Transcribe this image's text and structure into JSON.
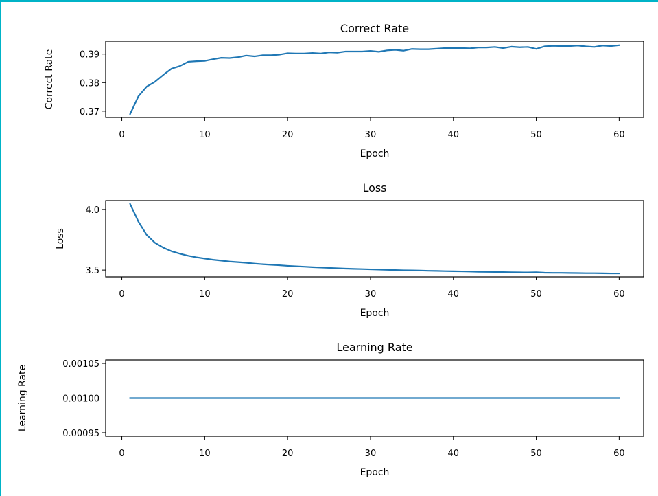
{
  "chart_data": [
    {
      "type": "line",
      "title": "Correct Rate",
      "xlabel": "Epoch",
      "ylabel": "Correct Rate",
      "xlim": [
        -1.95,
        62.95
      ],
      "ylim": [
        0.3678,
        0.3945
      ],
      "xticks": [
        0,
        10,
        20,
        30,
        40,
        50,
        60
      ],
      "yticks": [
        0.37,
        0.38,
        0.39
      ],
      "ytick_labels": [
        "0.37",
        "0.38",
        "0.39"
      ],
      "series": [
        {
          "name": "Correct Rate",
          "color": "#1f77b4",
          "x": [
            1,
            2,
            3,
            4,
            5,
            6,
            7,
            8,
            9,
            10,
            11,
            12,
            13,
            14,
            15,
            16,
            17,
            18,
            19,
            20,
            21,
            22,
            23,
            24,
            25,
            26,
            27,
            28,
            29,
            30,
            31,
            32,
            33,
            34,
            35,
            36,
            37,
            38,
            39,
            40,
            41,
            42,
            43,
            44,
            45,
            46,
            47,
            48,
            49,
            50,
            51,
            52,
            53,
            54,
            55,
            56,
            57,
            58,
            59,
            60
          ],
          "values": [
            0.369,
            0.3752,
            0.3786,
            0.3803,
            0.3827,
            0.3849,
            0.3858,
            0.3873,
            0.3875,
            0.3876,
            0.3882,
            0.3887,
            0.3886,
            0.3889,
            0.3895,
            0.3892,
            0.3896,
            0.3896,
            0.3898,
            0.3903,
            0.3902,
            0.3902,
            0.3904,
            0.3902,
            0.3906,
            0.3905,
            0.3909,
            0.3909,
            0.3909,
            0.3911,
            0.3908,
            0.3913,
            0.3915,
            0.3912,
            0.3918,
            0.3917,
            0.3917,
            0.3919,
            0.3921,
            0.3921,
            0.3921,
            0.392,
            0.3923,
            0.3923,
            0.3925,
            0.3921,
            0.3926,
            0.3924,
            0.3925,
            0.3918,
            0.3927,
            0.3929,
            0.3928,
            0.3928,
            0.393,
            0.3927,
            0.3925,
            0.393,
            0.3928,
            0.3931
          ]
        }
      ]
    },
    {
      "type": "line",
      "title": "Loss",
      "xlabel": "Epoch",
      "ylabel": "Loss",
      "xlim": [
        -1.95,
        62.95
      ],
      "ylim": [
        3.444,
        4.073
      ],
      "xticks": [
        0,
        10,
        20,
        30,
        40,
        50,
        60
      ],
      "yticks": [
        3.5,
        4.0
      ],
      "ytick_labels": [
        "3.5",
        "4.0"
      ],
      "series": [
        {
          "name": "Loss",
          "color": "#1f77b4",
          "x": [
            1,
            2,
            3,
            4,
            5,
            6,
            7,
            8,
            9,
            10,
            11,
            12,
            13,
            14,
            15,
            16,
            17,
            18,
            19,
            20,
            21,
            22,
            23,
            24,
            25,
            26,
            27,
            28,
            29,
            30,
            31,
            32,
            33,
            34,
            35,
            36,
            37,
            38,
            39,
            40,
            41,
            42,
            43,
            44,
            45,
            46,
            47,
            48,
            49,
            50,
            51,
            52,
            53,
            54,
            55,
            56,
            57,
            58,
            59,
            60
          ],
          "values": [
            4.045,
            3.9,
            3.79,
            3.725,
            3.685,
            3.655,
            3.635,
            3.618,
            3.605,
            3.595,
            3.585,
            3.578,
            3.57,
            3.565,
            3.56,
            3.553,
            3.548,
            3.544,
            3.54,
            3.535,
            3.531,
            3.528,
            3.524,
            3.521,
            3.518,
            3.515,
            3.512,
            3.51,
            3.508,
            3.506,
            3.504,
            3.502,
            3.5,
            3.498,
            3.497,
            3.496,
            3.494,
            3.493,
            3.491,
            3.49,
            3.489,
            3.488,
            3.486,
            3.485,
            3.484,
            3.483,
            3.482,
            3.481,
            3.48,
            3.482,
            3.478,
            3.477,
            3.477,
            3.476,
            3.475,
            3.474,
            3.474,
            3.473,
            3.472,
            3.472
          ]
        }
      ]
    },
    {
      "type": "line",
      "title": "Learning Rate",
      "xlabel": "Epoch",
      "ylabel": "Learning Rate",
      "xlim": [
        -1.95,
        62.95
      ],
      "ylim": [
        0.000945,
        0.001055
      ],
      "xticks": [
        0,
        10,
        20,
        30,
        40,
        50,
        60
      ],
      "yticks": [
        0.00095,
        0.001,
        0.00105
      ],
      "ytick_labels": [
        "0.00095",
        "0.00100",
        "0.00105"
      ],
      "series": [
        {
          "name": "Learning Rate",
          "color": "#1f77b4",
          "x": [
            1,
            60
          ],
          "values": [
            0.001,
            0.001
          ]
        }
      ]
    }
  ]
}
